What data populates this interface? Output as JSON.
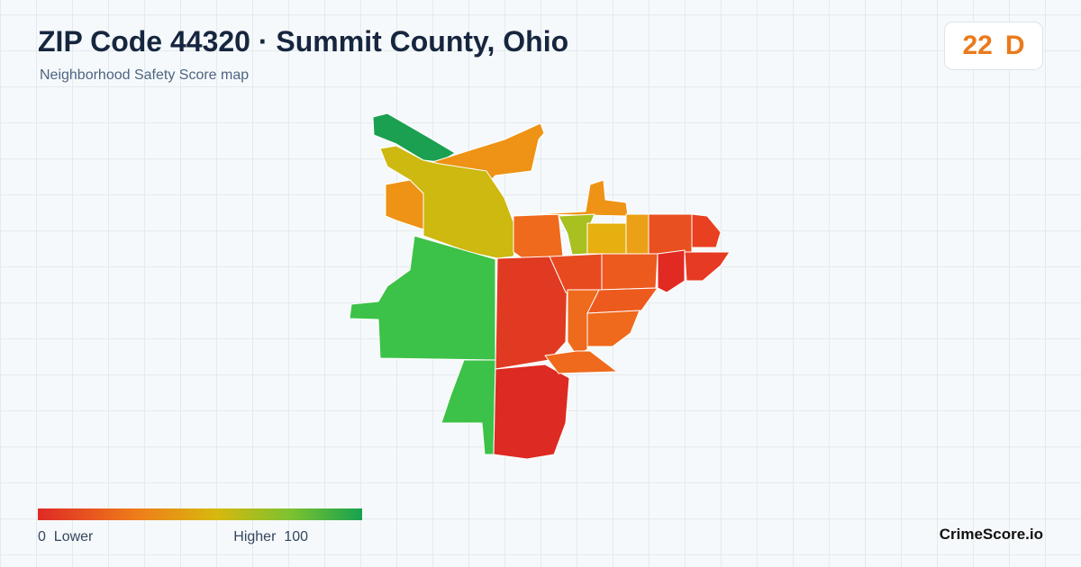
{
  "header": {
    "title": "ZIP Code 44320 · Summit County, Ohio",
    "subtitle": "Neighborhood Safety Score map"
  },
  "score": {
    "value": "22",
    "grade": "D"
  },
  "legend": {
    "min": "0",
    "min_label": "Lower",
    "max_label": "Higher",
    "max": "100"
  },
  "footer": {
    "brand": "CrimeScore.io"
  }
}
